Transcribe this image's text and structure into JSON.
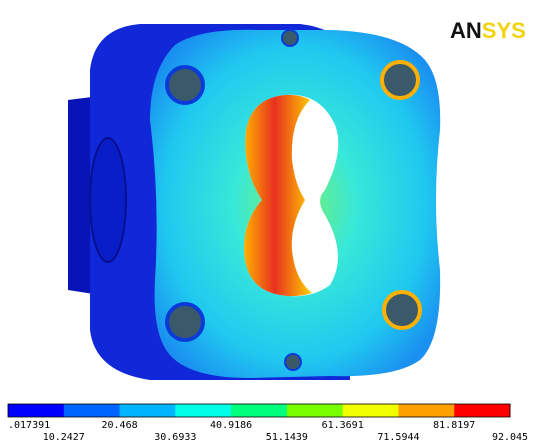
{
  "logo": {
    "parts": [
      "AN",
      "SYS"
    ],
    "colors": [
      "#111111",
      "#f2d20a"
    ]
  },
  "legend": {
    "labels": [
      ".017391",
      "10.2427",
      "20.468",
      "30.6933",
      "40.9186",
      "51.1439",
      "61.3691",
      "71.5944",
      "81.8197",
      "92.045"
    ],
    "colors": [
      "#0000ff",
      "#0064ff",
      "#00b4ff",
      "#00ffe6",
      "#00ff7c",
      "#78ff00",
      "#f0ff00",
      "#ffa000",
      "#ff0000"
    ]
  }
}
